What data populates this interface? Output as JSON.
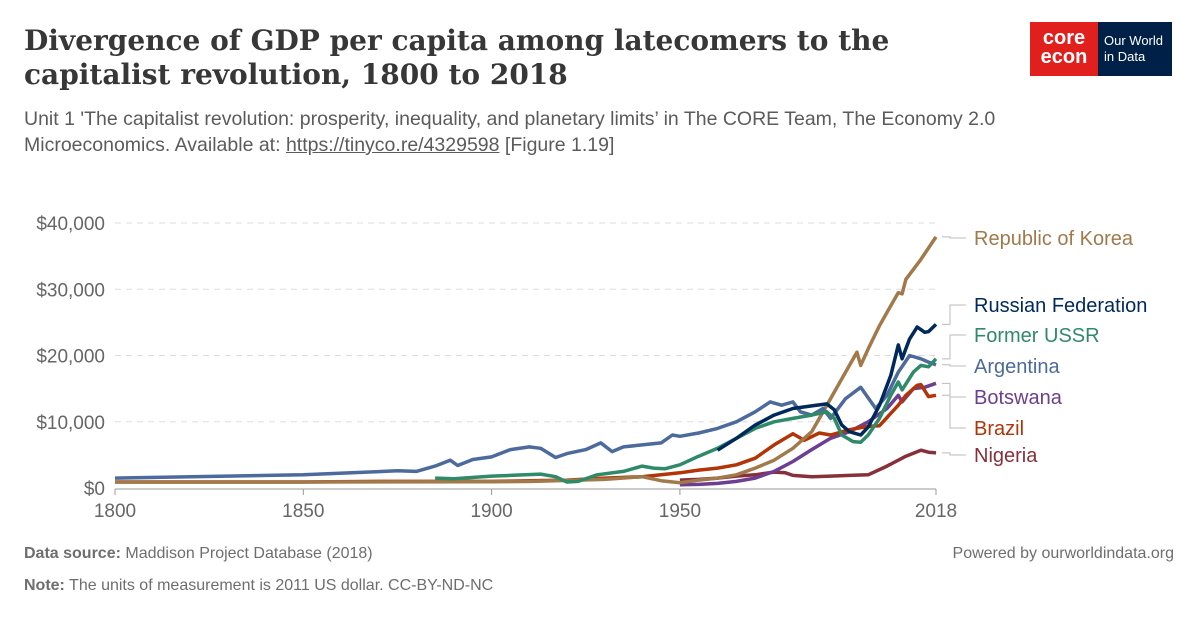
{
  "header": {
    "title": "Divergence of GDP per capita among latecomers to the capitalist revolution, 1800 to 2018",
    "subtitle_line1": "Unit 1 'The capitalist revolution: prosperity, inequality, and planetary limits’ in The CORE Team, The Economy 2.0",
    "subtitle_line2_prefix": "Microeconomics. Available at: ",
    "subtitle_link": "https://tinyco.re/4329598",
    "subtitle_suffix": " [Figure 1.19]"
  },
  "logo": {
    "core_line1": "core",
    "core_line2": "econ",
    "owid_line1": "Our World",
    "owid_line2": "in Data"
  },
  "footer": {
    "source_label": "Data source:",
    "source_text": " Maddison Project Database (2018)",
    "powered": "Powered by ourworldindata.org",
    "note_label": "Note:",
    "note_text": " The units of measurement is 2011 US dollar. CC-BY-ND-NC"
  },
  "chart_data": {
    "type": "line",
    "xlim": [
      1800,
      2018
    ],
    "ylim": [
      0,
      40000
    ],
    "x_ticks": [
      1800,
      1850,
      1900,
      1950,
      2018
    ],
    "x_tick_labels": [
      "1800",
      "1850",
      "1900",
      "1950",
      "2018"
    ],
    "y_ticks": [
      0,
      10000,
      20000,
      30000,
      40000
    ],
    "y_tick_labels": [
      "$0",
      "$10,000",
      "$20,000",
      "$30,000",
      "$40,000"
    ],
    "grid": "horizontal dashed",
    "legend": "right, line-end labels",
    "series": [
      {
        "name": "Republic of Korea",
        "color": "#a2794b",
        "points": [
          [
            1800,
            900
          ],
          [
            1850,
            900
          ],
          [
            1900,
            950
          ],
          [
            1911,
            1000
          ],
          [
            1930,
            1300
          ],
          [
            1940,
            1700
          ],
          [
            1945,
            1100
          ],
          [
            1950,
            800
          ],
          [
            1955,
            1200
          ],
          [
            1960,
            1500
          ],
          [
            1965,
            2000
          ],
          [
            1970,
            3000
          ],
          [
            1975,
            4200
          ],
          [
            1980,
            6000
          ],
          [
            1985,
            8500
          ],
          [
            1990,
            13500
          ],
          [
            1994,
            17500
          ],
          [
            1997,
            20500
          ],
          [
            1998,
            18500
          ],
          [
            2000,
            21000
          ],
          [
            2003,
            24500
          ],
          [
            2005,
            26500
          ],
          [
            2008,
            29500
          ],
          [
            2009,
            29300
          ],
          [
            2010,
            31500
          ],
          [
            2014,
            34500
          ],
          [
            2018,
            37900
          ]
        ]
      },
      {
        "name": "Russian Federation",
        "color": "#00295b",
        "points": [
          [
            1960,
            5700
          ],
          [
            1965,
            7500
          ],
          [
            1970,
            9500
          ],
          [
            1975,
            11000
          ],
          [
            1980,
            12000
          ],
          [
            1985,
            12400
          ],
          [
            1989,
            12700
          ],
          [
            1991,
            11800
          ],
          [
            1993,
            9500
          ],
          [
            1995,
            8500
          ],
          [
            1998,
            8000
          ],
          [
            2000,
            9200
          ],
          [
            2003,
            12500
          ],
          [
            2006,
            17000
          ],
          [
            2008,
            21600
          ],
          [
            2009,
            19500
          ],
          [
            2011,
            22500
          ],
          [
            2013,
            24300
          ],
          [
            2015,
            23500
          ],
          [
            2016,
            23600
          ],
          [
            2018,
            24700
          ]
        ]
      },
      {
        "name": "Former USSR",
        "color": "#2f8a6a",
        "points": [
          [
            1885,
            1500
          ],
          [
            1890,
            1400
          ],
          [
            1900,
            1800
          ],
          [
            1905,
            1900
          ],
          [
            1913,
            2100
          ],
          [
            1917,
            1700
          ],
          [
            1920,
            900
          ],
          [
            1923,
            1000
          ],
          [
            1928,
            2000
          ],
          [
            1935,
            2500
          ],
          [
            1940,
            3300
          ],
          [
            1943,
            3000
          ],
          [
            1946,
            2900
          ],
          [
            1950,
            3500
          ],
          [
            1955,
            4800
          ],
          [
            1960,
            6000
          ],
          [
            1965,
            7500
          ],
          [
            1970,
            9000
          ],
          [
            1975,
            10000
          ],
          [
            1980,
            10500
          ],
          [
            1985,
            11000
          ],
          [
            1989,
            11500
          ],
          [
            1991,
            10500
          ],
          [
            1993,
            8000
          ],
          [
            1996,
            7000
          ],
          [
            1998,
            6900
          ],
          [
            2000,
            8000
          ],
          [
            2003,
            10500
          ],
          [
            2006,
            14000
          ],
          [
            2008,
            16000
          ],
          [
            2009,
            14800
          ],
          [
            2012,
            17500
          ],
          [
            2014,
            18500
          ],
          [
            2016,
            18300
          ],
          [
            2018,
            19500
          ]
        ]
      },
      {
        "name": "Argentina",
        "color": "#4c6a9c",
        "points": [
          [
            1800,
            1500
          ],
          [
            1850,
            2000
          ],
          [
            1875,
            2600
          ],
          [
            1880,
            2500
          ],
          [
            1885,
            3300
          ],
          [
            1889,
            4200
          ],
          [
            1891,
            3400
          ],
          [
            1895,
            4300
          ],
          [
            1900,
            4700
          ],
          [
            1905,
            5800
          ],
          [
            1910,
            6200
          ],
          [
            1913,
            6000
          ],
          [
            1917,
            4600
          ],
          [
            1920,
            5200
          ],
          [
            1925,
            5800
          ],
          [
            1929,
            6800
          ],
          [
            1932,
            5500
          ],
          [
            1935,
            6200
          ],
          [
            1940,
            6500
          ],
          [
            1945,
            6800
          ],
          [
            1948,
            8000
          ],
          [
            1950,
            7800
          ],
          [
            1955,
            8300
          ],
          [
            1960,
            9000
          ],
          [
            1965,
            10000
          ],
          [
            1970,
            11500
          ],
          [
            1974,
            13000
          ],
          [
            1977,
            12500
          ],
          [
            1980,
            13000
          ],
          [
            1982,
            11500
          ],
          [
            1985,
            11000
          ],
          [
            1988,
            12000
          ],
          [
            1990,
            10500
          ],
          [
            1994,
            13500
          ],
          [
            1998,
            15200
          ],
          [
            2002,
            12000
          ],
          [
            2005,
            14000
          ],
          [
            2008,
            17500
          ],
          [
            2011,
            20000
          ],
          [
            2014,
            19500
          ],
          [
            2016,
            19000
          ],
          [
            2018,
            18600
          ]
        ]
      },
      {
        "name": "Botswana",
        "color": "#6d3e91",
        "points": [
          [
            1950,
            500
          ],
          [
            1955,
            550
          ],
          [
            1960,
            700
          ],
          [
            1965,
            1000
          ],
          [
            1970,
            1500
          ],
          [
            1975,
            2500
          ],
          [
            1980,
            4000
          ],
          [
            1985,
            5800
          ],
          [
            1990,
            7500
          ],
          [
            1995,
            8500
          ],
          [
            2000,
            10000
          ],
          [
            2005,
            12000
          ],
          [
            2008,
            14000
          ],
          [
            2009,
            13000
          ],
          [
            2012,
            15000
          ],
          [
            2015,
            15200
          ],
          [
            2018,
            15800
          ]
        ]
      },
      {
        "name": "Brazil",
        "color": "#b13507",
        "points": [
          [
            1800,
            900
          ],
          [
            1850,
            900
          ],
          [
            1870,
            1000
          ],
          [
            1900,
            1000
          ],
          [
            1920,
            1200
          ],
          [
            1930,
            1500
          ],
          [
            1940,
            1700
          ],
          [
            1950,
            2300
          ],
          [
            1955,
            2700
          ],
          [
            1960,
            3000
          ],
          [
            1965,
            3500
          ],
          [
            1970,
            4500
          ],
          [
            1975,
            6500
          ],
          [
            1980,
            8200
          ],
          [
            1983,
            7200
          ],
          [
            1987,
            8300
          ],
          [
            1990,
            8000
          ],
          [
            1995,
            8800
          ],
          [
            2000,
            9300
          ],
          [
            2003,
            9400
          ],
          [
            2008,
            12500
          ],
          [
            2010,
            14000
          ],
          [
            2013,
            15500
          ],
          [
            2014,
            15600
          ],
          [
            2016,
            13800
          ],
          [
            2018,
            14000
          ]
        ]
      },
      {
        "name": "Nigeria",
        "color": "#883039",
        "points": [
          [
            1950,
            1200
          ],
          [
            1955,
            1300
          ],
          [
            1960,
            1500
          ],
          [
            1965,
            1800
          ],
          [
            1970,
            2000
          ],
          [
            1975,
            2400
          ],
          [
            1978,
            2300
          ],
          [
            1980,
            1900
          ],
          [
            1985,
            1700
          ],
          [
            1990,
            1800
          ],
          [
            1995,
            1900
          ],
          [
            2000,
            2000
          ],
          [
            2005,
            3300
          ],
          [
            2010,
            4800
          ],
          [
            2014,
            5700
          ],
          [
            2016,
            5400
          ],
          [
            2018,
            5300
          ]
        ]
      }
    ]
  }
}
